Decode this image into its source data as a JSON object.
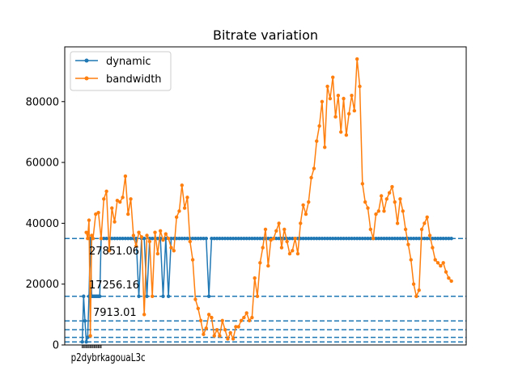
{
  "chart_data": {
    "type": "line",
    "title": "Bitrate variation",
    "xlabel": "",
    "ylabel": "",
    "xlim": [
      -13,
      285
    ],
    "ylim": [
      0,
      98000
    ],
    "yticks": [
      0,
      20000,
      40000,
      60000,
      80000
    ],
    "ytick_labels": [
      "0",
      "20000",
      "40000",
      "60000",
      "80000"
    ],
    "grid": false,
    "legend_position": "top-left",
    "xtick_positions": [
      0,
      1,
      2,
      3,
      4,
      5,
      6,
      7,
      8,
      9,
      10,
      11,
      12,
      13,
      14
    ],
    "xtick_label_text": "p2dybrkagouaL3c",
    "hlines": [
      {
        "y": 1000
      },
      {
        "y": 2500
      },
      {
        "y": 5000
      },
      {
        "y": 7913.01
      },
      {
        "y": 16000
      },
      {
        "y": 35000
      }
    ],
    "annotations": [
      {
        "text": "27851.06",
        "x": 5,
        "y": 29800
      },
      {
        "text": "17256.16",
        "x": 5,
        "y": 18600
      },
      {
        "text": "7913.01",
        "x": 8,
        "y": 9600
      }
    ],
    "colors": {
      "dynamic": "#1f77b4",
      "bandwidth": "#ff7f0e",
      "hline": "#1f77b4"
    },
    "series": [
      {
        "name": "dynamic",
        "color": "#1f77b4",
        "x": [
          0,
          1,
          2,
          3,
          4,
          5,
          6,
          7,
          8,
          9,
          10,
          11,
          12,
          13,
          14,
          16,
          18,
          20,
          22,
          24,
          26,
          28,
          30,
          32,
          34,
          36,
          38,
          40,
          42,
          44,
          46,
          48,
          50,
          52,
          54,
          56,
          58,
          60,
          62,
          64,
          66,
          68,
          70,
          72,
          74,
          76,
          78,
          80,
          82,
          84,
          86,
          88,
          90,
          92,
          94,
          96,
          98,
          100,
          102,
          104,
          106,
          108,
          110,
          112,
          114,
          116,
          118,
          120,
          122,
          124,
          126,
          128,
          130,
          132,
          134,
          136,
          138,
          140,
          142,
          144,
          146,
          148,
          150,
          152,
          154,
          156,
          158,
          160,
          162,
          164,
          166,
          168,
          170,
          172,
          174,
          176,
          178,
          180,
          182,
          184,
          186,
          188,
          190,
          192,
          194,
          196,
          198,
          200,
          202,
          204,
          206,
          208,
          210,
          212,
          214,
          216,
          218,
          220,
          222,
          224,
          226,
          228,
          230,
          232,
          234,
          236,
          238,
          240,
          242,
          244,
          246,
          248,
          250,
          252,
          254,
          256,
          258,
          260,
          262,
          264,
          266,
          268,
          270,
          272,
          274
        ],
        "y": [
          1000,
          16000,
          7913,
          1000,
          2500,
          16000,
          35000,
          16000,
          16000,
          16000,
          16000,
          16000,
          16000,
          16000,
          35000,
          35000,
          35000,
          35000,
          35000,
          35000,
          35000,
          35000,
          35000,
          35000,
          35000,
          35000,
          35000,
          35000,
          16000,
          35000,
          35000,
          16000,
          35000,
          35000,
          35000,
          35000,
          35000,
          16000,
          35000,
          16000,
          35000,
          35000,
          35000,
          35000,
          35000,
          35000,
          35000,
          35000,
          35000,
          35000,
          35000,
          35000,
          35000,
          35000,
          16000,
          35000,
          35000,
          35000,
          35000,
          35000,
          35000,
          35000,
          35000,
          35000,
          35000,
          35000,
          35000,
          35000,
          35000,
          35000,
          35000,
          35000,
          35000,
          35000,
          35000,
          35000,
          35000,
          35000,
          35000,
          35000,
          35000,
          35000,
          35000,
          35000,
          35000,
          35000,
          35000,
          35000,
          35000,
          35000,
          35000,
          35000,
          35000,
          35000,
          35000,
          35000,
          35000,
          35000,
          35000,
          35000,
          35000,
          35000,
          35000,
          35000,
          35000,
          35000,
          35000,
          35000,
          35000,
          35000,
          35000,
          35000,
          35000,
          35000,
          35000,
          35000,
          35000,
          35000,
          35000,
          35000,
          35000,
          35000,
          35000,
          35000,
          35000,
          35000,
          35000,
          35000,
          35000,
          35000,
          35000,
          35000,
          35000,
          35000,
          35000,
          35000,
          35000,
          35000,
          35000,
          35000,
          35000,
          35000,
          35000,
          35000,
          35000
        ]
      },
      {
        "name": "bandwidth",
        "color": "#ff7f0e",
        "x": [
          3,
          4,
          5,
          6,
          7,
          8,
          10,
          12,
          14,
          16,
          18,
          20,
          22,
          24,
          26,
          28,
          30,
          32,
          34,
          36,
          38,
          40,
          42,
          44,
          46,
          48,
          50,
          52,
          54,
          56,
          58,
          60,
          62,
          64,
          66,
          68,
          70,
          72,
          74,
          76,
          78,
          80,
          82,
          84,
          86,
          88,
          90,
          92,
          94,
          96,
          98,
          100,
          102,
          104,
          106,
          108,
          110,
          112,
          114,
          116,
          118,
          120,
          122,
          124,
          126,
          128,
          130,
          132,
          134,
          136,
          138,
          140,
          142,
          144,
          146,
          148,
          150,
          152,
          154,
          156,
          158,
          160,
          162,
          164,
          166,
          168,
          170,
          172,
          174,
          176,
          178,
          180,
          182,
          184,
          186,
          188,
          190,
          192,
          194,
          196,
          198,
          200,
          202,
          204,
          206,
          208,
          210,
          212,
          214,
          216,
          218,
          220,
          222,
          224,
          226,
          228,
          230,
          232,
          234,
          236,
          238,
          240,
          242,
          244,
          246,
          248,
          250,
          252,
          254,
          256,
          258,
          260,
          262,
          264,
          266,
          268,
          270,
          272,
          274
        ],
        "y": [
          37000,
          35000,
          41000,
          3000,
          36000,
          35000,
          43000,
          43500,
          35000,
          48000,
          50500,
          31000,
          45000,
          40500,
          47500,
          47000,
          48500,
          55500,
          43000,
          48000,
          36000,
          32500,
          37000,
          35500,
          10000,
          36000,
          34000,
          16000,
          37000,
          30000,
          37500,
          34500,
          36500,
          35000,
          32000,
          31000,
          42000,
          44000,
          52500,
          45000,
          48500,
          34000,
          28000,
          15000,
          12000,
          8000,
          3500,
          5500,
          10000,
          9000,
          3000,
          5000,
          3000,
          8000,
          5000,
          2000,
          4000,
          2000,
          6000,
          6000,
          8000,
          9000,
          10500,
          8000,
          9000,
          22000,
          16000,
          27000,
          32000,
          38000,
          26000,
          34500,
          35000,
          37500,
          40000,
          32000,
          38000,
          34000,
          30000,
          31000,
          35000,
          30000,
          40000,
          46000,
          43000,
          47000,
          55000,
          58000,
          67000,
          72000,
          80000,
          65000,
          85000,
          81000,
          88000,
          75000,
          82000,
          70000,
          81000,
          69000,
          76000,
          82000,
          77000,
          94000,
          85000,
          53000,
          47000,
          45000,
          38000,
          35000,
          43000,
          44000,
          49000,
          44000,
          48000,
          50000,
          52000,
          47000,
          40000,
          48000,
          44000,
          38000,
          33000,
          28000,
          20000,
          16000,
          18000,
          38000,
          40000,
          42000,
          36000,
          32000,
          28000,
          27000,
          26000,
          27000,
          24000,
          22000,
          21000
        ]
      }
    ]
  }
}
